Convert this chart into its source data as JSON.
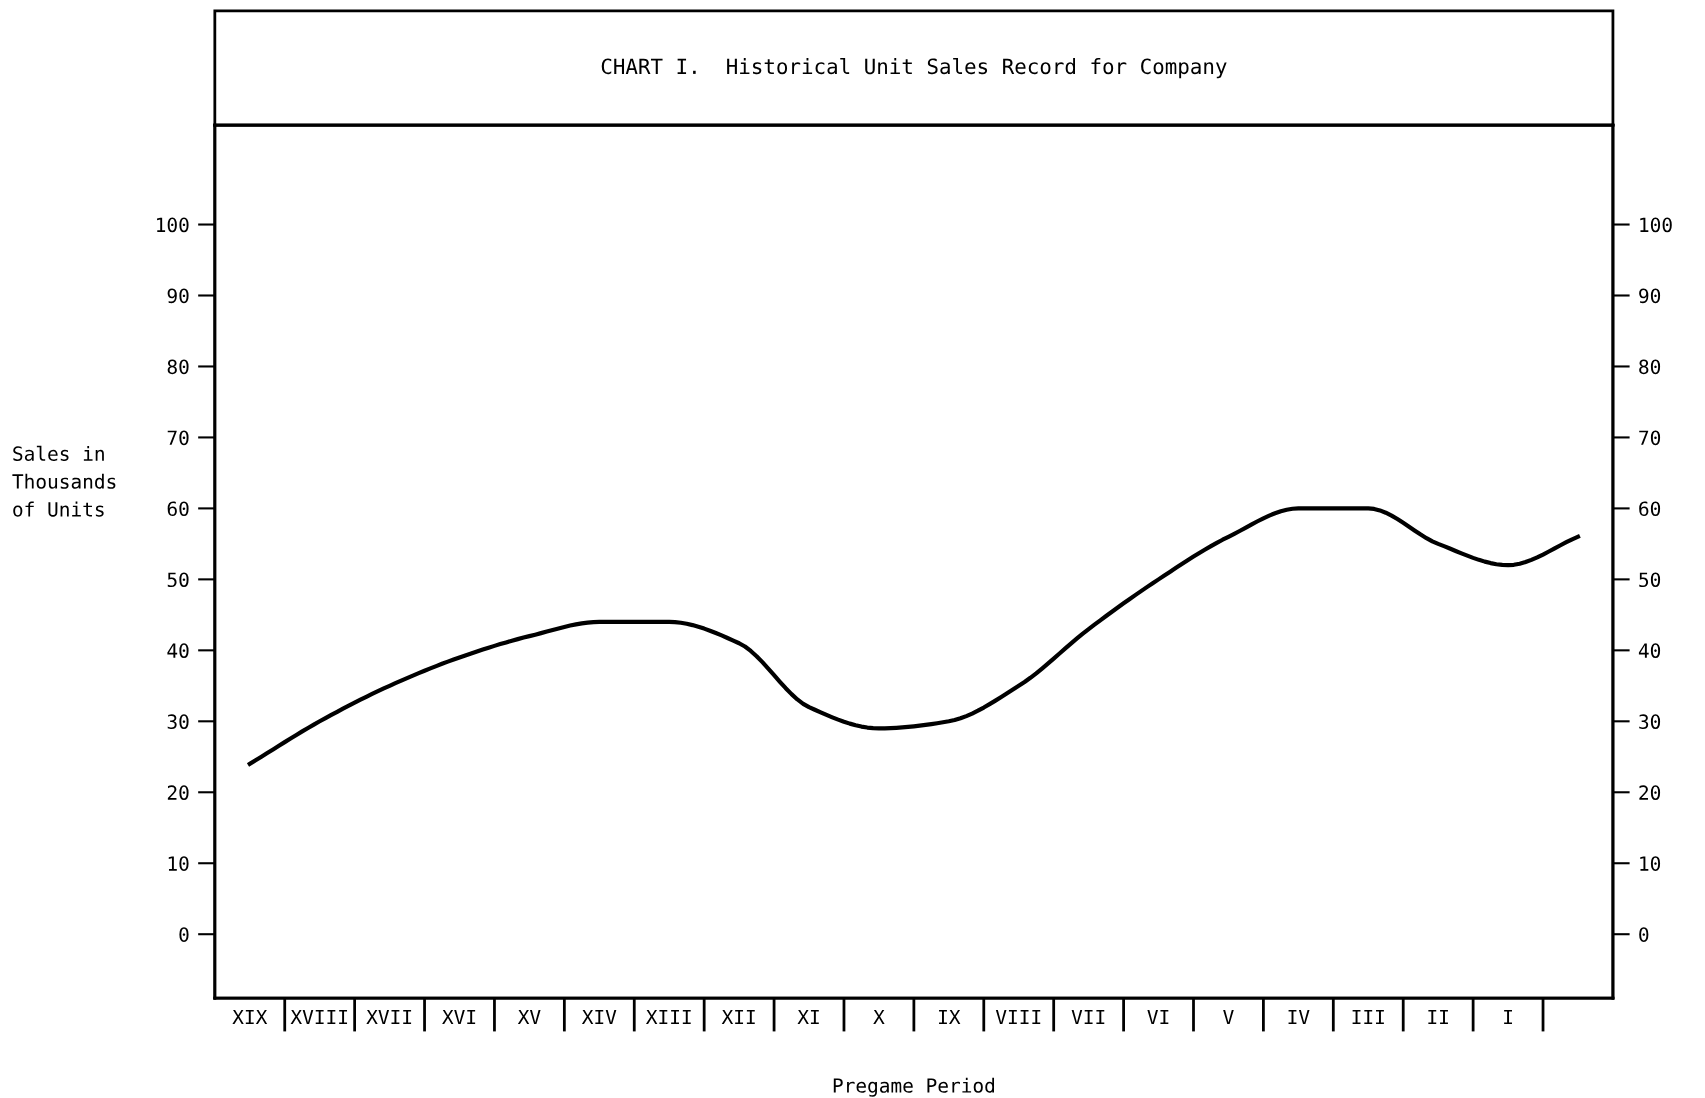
{
  "chart_data": {
    "type": "line",
    "title": "CHART I.  Historical Unit Sales Record for Company",
    "xlabel": "Pregame Period",
    "ylabel": "Sales in\nThousands\nof Units",
    "categories": [
      "XIX",
      "XVIII",
      "XVII",
      "XVI",
      "XV",
      "XIV",
      "XIII",
      "XII",
      "XI",
      "X",
      "IX",
      "VIII",
      "VII",
      "VI",
      "V",
      "IV",
      "III",
      "II",
      "I",
      null
    ],
    "series": [
      {
        "color": "#000000",
        "values": [
          24,
          30,
          35,
          39,
          42,
          44,
          44,
          41,
          32,
          29,
          30,
          35,
          43,
          50,
          56,
          60,
          60,
          55,
          52,
          56
        ]
      }
    ],
    "ylim": [
      -9,
      114
    ],
    "yticks": [
      0,
      10,
      20,
      30,
      40,
      50,
      60,
      70,
      80,
      90,
      100
    ],
    "y2lim": [
      -9,
      114
    ],
    "y2ticks": [
      0,
      10,
      20,
      30,
      40,
      50,
      60,
      70,
      80,
      90,
      100
    ],
    "grid": false,
    "legend": false,
    "marker": "none",
    "line_style": "solid"
  }
}
